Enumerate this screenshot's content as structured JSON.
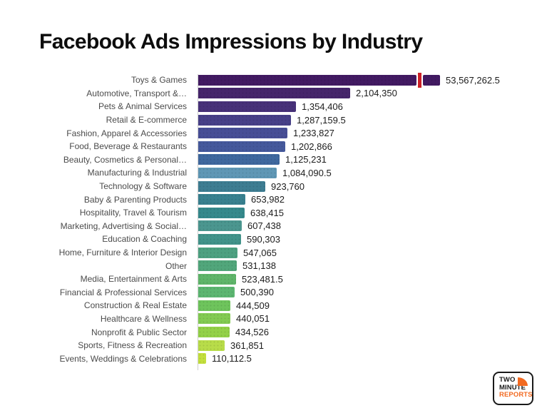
{
  "title": "Facebook Ads Impressions by Industry",
  "chart_data": {
    "type": "bar",
    "orientation": "horizontal",
    "title": "Facebook Ads Impressions by Industry",
    "grid": false,
    "legend": "none",
    "categories": [
      "Toys & Games",
      "Automotive, Transport &…",
      "Pets & Animal Services",
      "Retail & E-commerce",
      "Fashion, Apparel & Accessories",
      "Food, Beverage & Restaurants",
      "Beauty, Cosmetics & Personal…",
      "Manufacturing & Industrial",
      "Technology & Software",
      "Baby & Parenting Products",
      "Hospitality, Travel & Tourism",
      "Marketing, Advertising & Social…",
      "Education & Coaching",
      "Home, Furniture & Interior Design",
      "Other",
      "Media, Entertainment & Arts",
      "Financial & Professional Services",
      "Construction & Real Estate",
      "Healthcare & Wellness",
      "Nonprofit & Public Sector",
      "Sports, Fitness & Recreation",
      "Events, Weddings & Celebrations"
    ],
    "values": [
      53567262.5,
      2104350,
      1354406,
      1287159.5,
      1233827,
      1202866,
      1125231,
      1084090.5,
      923760,
      653982,
      638415,
      607438,
      590303,
      547065,
      531138,
      523481.5,
      500390,
      444509,
      440051,
      434526,
      361851,
      110112.5
    ],
    "value_labels": [
      "53,567,262.5",
      "2,104,350",
      "1,354,406",
      "1,287,159.5",
      "1,233,827",
      "1,202,866",
      "1,125,231",
      "1,084,090.5",
      "923,760",
      "653,982",
      "638,415",
      "607,438",
      "590,303",
      "547,065",
      "531,138",
      "523,481.5",
      "500,390",
      "444,509",
      "440,051",
      "434,526",
      "361,851",
      "110,112.5"
    ],
    "bar_colors": [
      "#421a62",
      "#46256b",
      "#473179",
      "#474088",
      "#474e96",
      "#45599c",
      "#3f689e",
      "#5f97b5",
      "#3d7d92",
      "#38808f",
      "#35898c",
      "#4b968f",
      "#41938a",
      "#4da181",
      "#51a67b",
      "#5fb56a",
      "#5cb671",
      "#6ec45c",
      "#82cb52",
      "#93d148",
      "#b8dc49",
      "#c3df3d"
    ],
    "axis_break": {
      "bar_index": 0,
      "marker_color": "#cc2127",
      "note": "red break marker truncating the Toys & Games bar"
    },
    "axis_line_color": "#cfcfcf"
  },
  "logo": {
    "lines": [
      "TWO",
      "MINUTE",
      "REPORTS"
    ],
    "accent_color": "#f26a21",
    "border_color": "#1a1a1a"
  }
}
